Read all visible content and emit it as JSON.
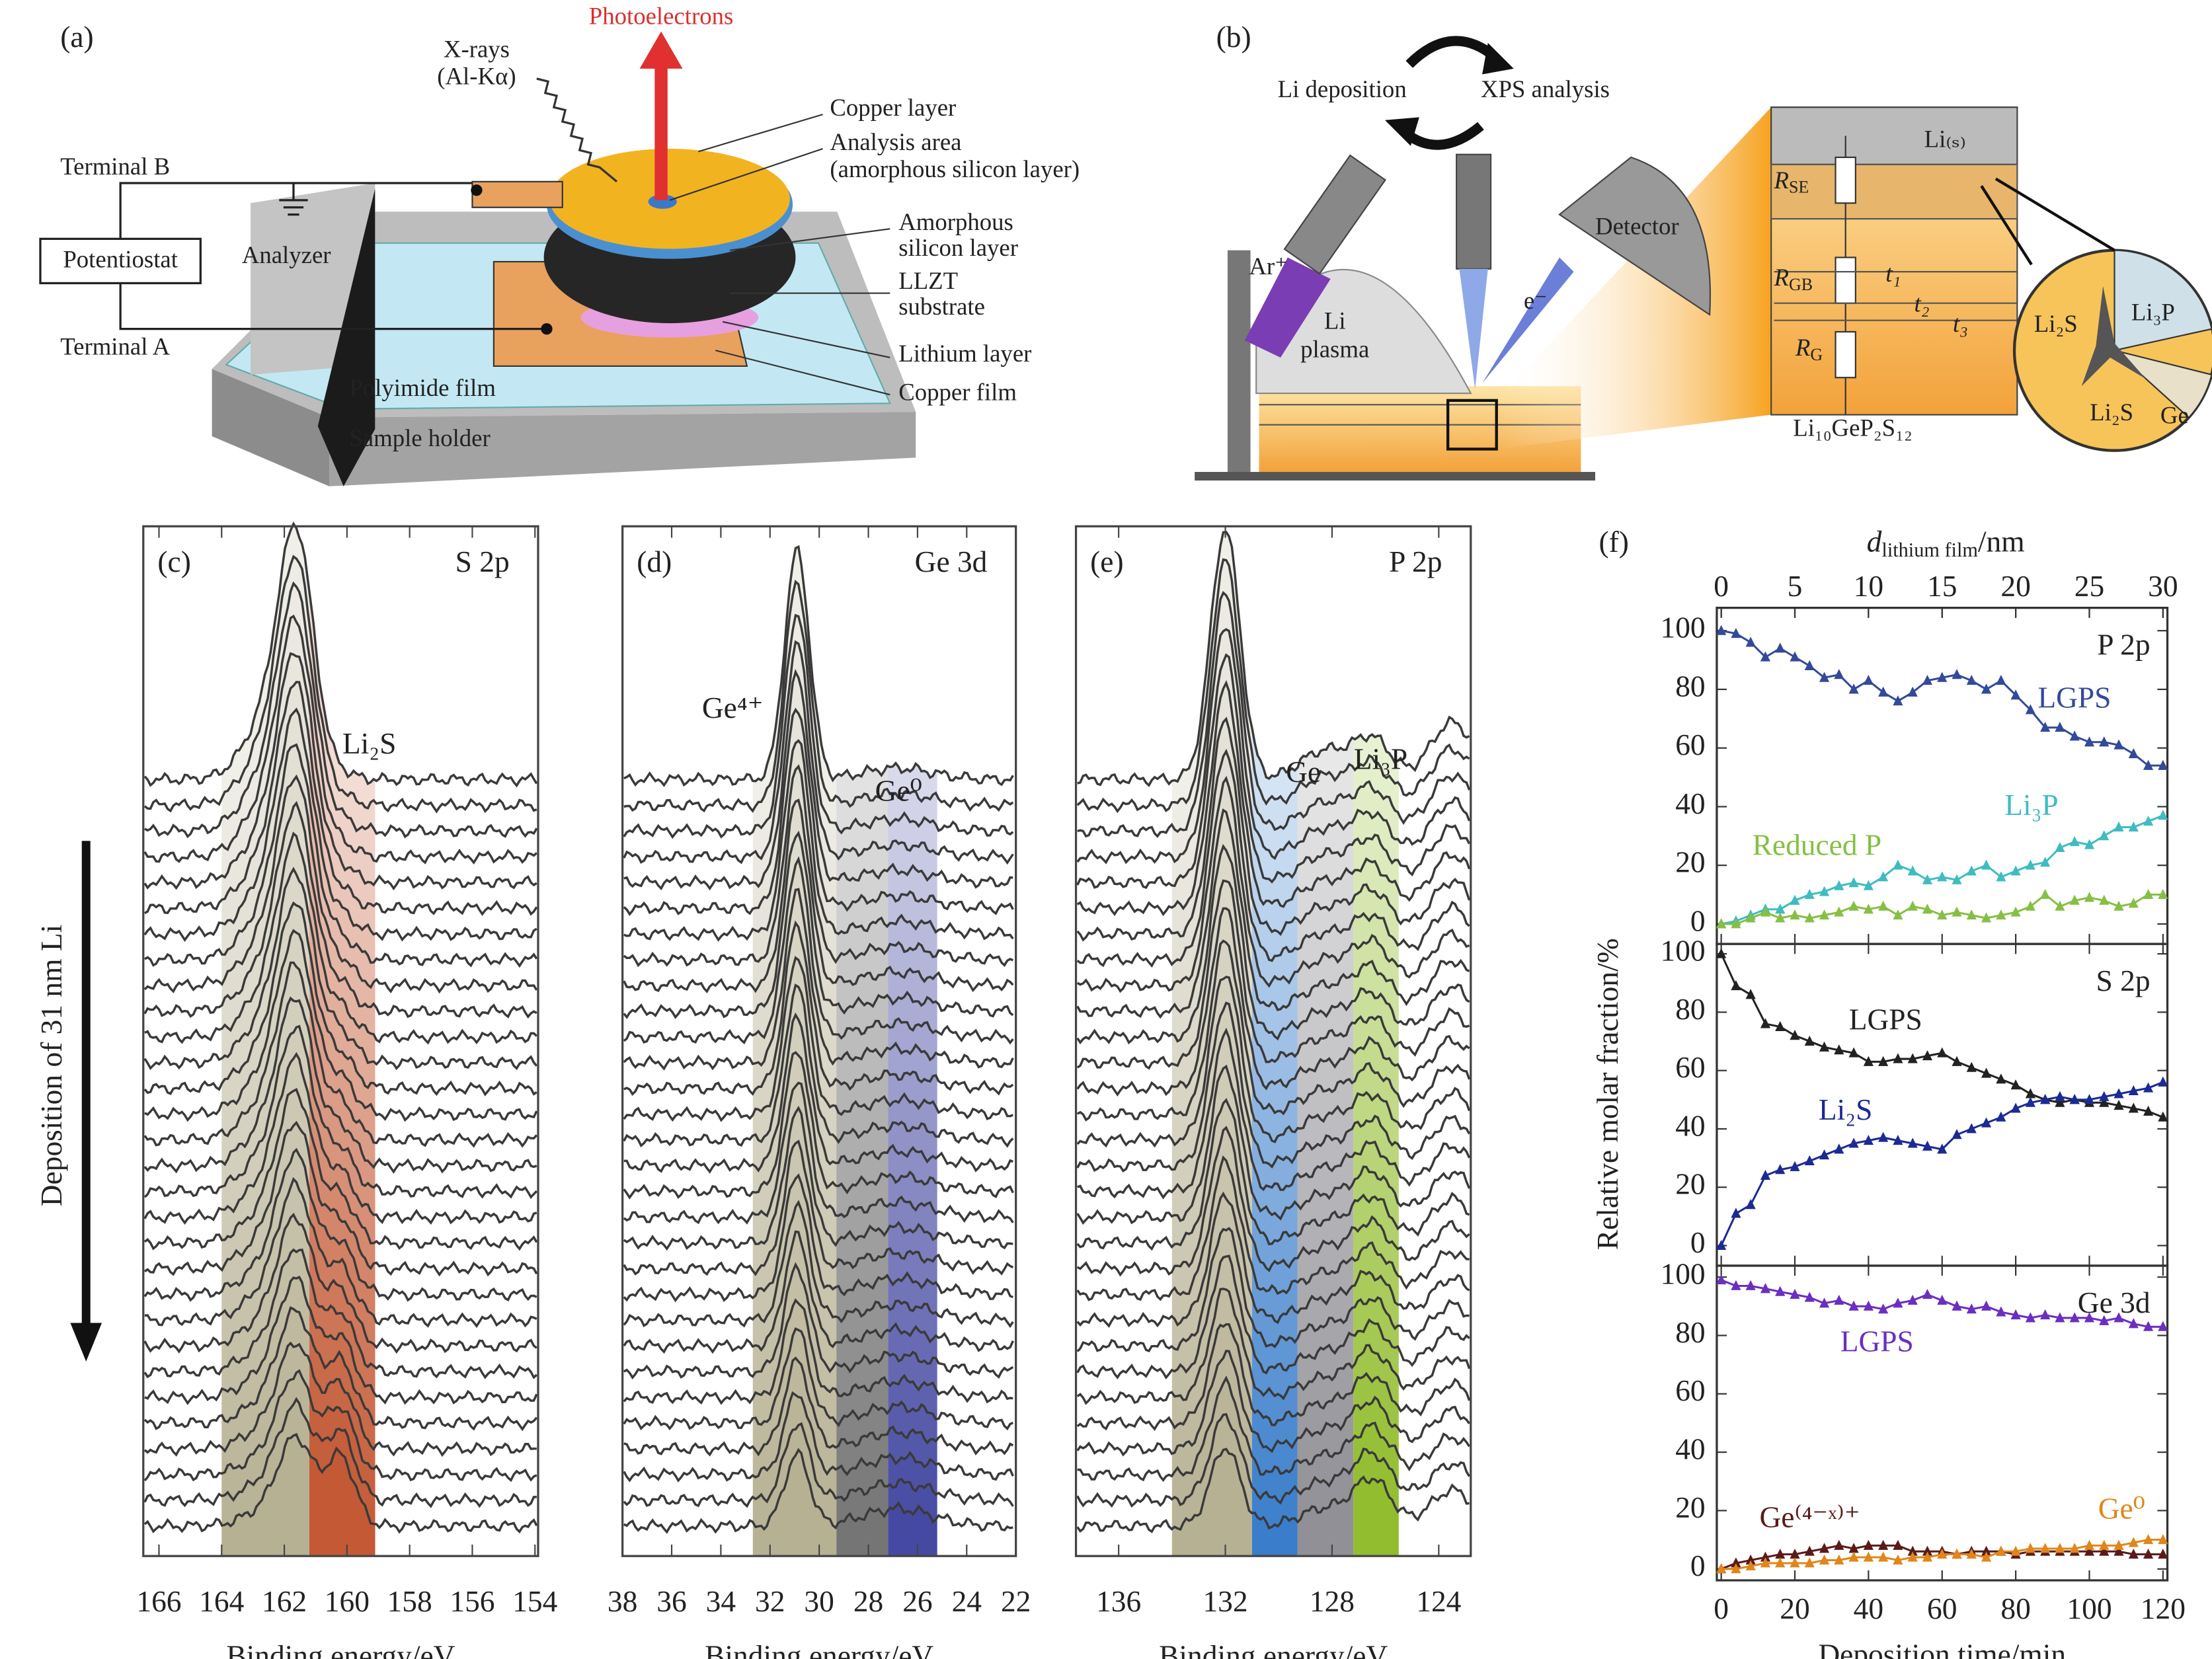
{
  "diagram_a": {
    "label": "(a)",
    "photoelectrons": "Photoelectrons",
    "xrays": "X-rays",
    "xrays_source": "(Al-Kα)",
    "copper_layer": "Copper layer",
    "analysis_area": "Analysis area",
    "analysis_area_note": "(amorphous silicon layer)",
    "terminal_b": "Terminal B",
    "amorphous": "Amorphous",
    "silicon_layer": "silicon layer",
    "potentiostat": "Potentiostat",
    "analyzer": "Analyzer",
    "llzt": "LLZT",
    "substrate": "substrate",
    "terminal_a": "Terminal A",
    "lithium_layer": "Lithium layer",
    "polyimide": "Polyimide film",
    "copper_film": "Copper film",
    "sample_holder": "Sample holder"
  },
  "diagram_b": {
    "label": "(b)",
    "li_deposition": "Li deposition",
    "xps_analysis": "XPS analysis",
    "ar": "Ar⁺",
    "detector": "Detector",
    "li": "Li",
    "plasma": "plasma",
    "electron": "e⁻",
    "li_s": "Li₍ₛ₎",
    "r_se": {
      "main": "R",
      "sub": "SE"
    },
    "r_gb": {
      "main": "R",
      "sub": "GB"
    },
    "r_g": {
      "main": "R",
      "sub": "G"
    },
    "t1": "t₁",
    "t2": "t₂",
    "t3": "t₃",
    "grain_li2s_a": "Li₂S",
    "grain_li3p": "Li₃P",
    "grain_ge": "Ge",
    "grain_li2s_b": "Li₂S",
    "formula": "Li₁₀GeP₂S₁₂"
  },
  "side_label": "Deposition of 31 nm Li",
  "chart_data": [
    {
      "type": "spectra",
      "label": "(c)",
      "core_level": "S 2p",
      "xlabel": "Binding energy/eV",
      "xlim": [
        166.5,
        153.9
      ],
      "xticks": [
        166,
        164,
        162,
        160,
        158,
        156,
        154
      ],
      "annotations": [
        "Li₂S"
      ],
      "bands": [
        {
          "from": 164,
          "to": 161.2,
          "color": "#b3ad8e"
        },
        {
          "from": 161.2,
          "to": 159.1,
          "color": "#c0502a"
        }
      ]
    },
    {
      "type": "spectra",
      "label": "(d)",
      "core_level": "Ge 3d",
      "xlabel": "Binding energy/eV",
      "xlim": [
        38,
        22
      ],
      "xticks": [
        38,
        36,
        34,
        32,
        30,
        28,
        26,
        24,
        22
      ],
      "annotations": [
        "Ge⁴⁺",
        "Ge⁰"
      ],
      "bands": [
        {
          "from": 32.7,
          "to": 29.3,
          "color": "#b3ad8e"
        },
        {
          "from": 29.3,
          "to": 27.2,
          "color": "#6e6e6e"
        },
        {
          "from": 27.2,
          "to": 25.2,
          "color": "#3b3f9c"
        }
      ]
    },
    {
      "type": "spectra",
      "label": "(e)",
      "core_level": "P 2p",
      "xlabel": "Binding energy/eV",
      "xlim": [
        137.6,
        122.8
      ],
      "xticks": [
        136,
        132,
        128,
        124
      ],
      "annotations": [
        "Ge",
        "Li₃P"
      ],
      "bands": [
        {
          "from": 134,
          "to": 131,
          "color": "#b3ad8e"
        },
        {
          "from": 131,
          "to": 129.3,
          "color": "#2f76c8"
        },
        {
          "from": 129.3,
          "to": 127.2,
          "color": "#8a8a90"
        },
        {
          "from": 127.2,
          "to": 125.5,
          "color": "#8cb923"
        }
      ]
    },
    {
      "type": "line",
      "label": "(f)",
      "core_level": "P 2p",
      "x2label": {
        "symbol": "d",
        "subscript": "lithium film",
        "unit": "/nm"
      },
      "x2lim": [
        -0.3,
        30.3
      ],
      "x2ticks": [
        0,
        5,
        10,
        15,
        20,
        25,
        30
      ],
      "xlim": [
        -1.2,
        121.2
      ],
      "ylim": [
        -6.8,
        107.8
      ],
      "yticks": [
        0,
        20,
        40,
        60,
        80,
        100
      ],
      "x": [
        0,
        4,
        8,
        12,
        16,
        20,
        24,
        28,
        32,
        36,
        40,
        44,
        48,
        52,
        56,
        60,
        64,
        68,
        72,
        76,
        80,
        84,
        88,
        92,
        96,
        100,
        104,
        108,
        112,
        116,
        120
      ],
      "series": [
        {
          "name": "LGPS",
          "color": "#34499a",
          "values": [
            100,
            99,
            96,
            91,
            94,
            91,
            88,
            84,
            85,
            80,
            83,
            79,
            76,
            79,
            83,
            84,
            85,
            83,
            80,
            83,
            78,
            73,
            67,
            67,
            64,
            62,
            62,
            61,
            58,
            54,
            54
          ]
        },
        {
          "name": "Li₃P",
          "color": "#3fbcc0",
          "values": [
            0,
            1,
            3,
            5,
            5,
            8,
            10,
            11,
            13,
            14,
            13,
            16,
            20,
            18,
            15,
            16,
            15,
            18,
            20,
            16,
            18,
            20,
            21,
            26,
            28,
            27,
            30,
            33,
            33,
            35,
            37
          ]
        },
        {
          "name": "Reduced P",
          "color": "#86bf45",
          "values": [
            0,
            0,
            2,
            4,
            2,
            3,
            2,
            3,
            4,
            6,
            5,
            6,
            3,
            6,
            5,
            3,
            4,
            3,
            2,
            3,
            4,
            6,
            10,
            6,
            8,
            9,
            8,
            6,
            7,
            10,
            10
          ]
        }
      ]
    },
    {
      "type": "line",
      "core_level": "S 2p",
      "ylabel": "Relative molar fraction/%",
      "xlim": [
        -1.2,
        121.2
      ],
      "ylim": [
        -6.9,
        103.4
      ],
      "yticks": [
        0,
        20,
        40,
        60,
        80,
        100
      ],
      "x": [
        0,
        4,
        8,
        12,
        16,
        20,
        24,
        28,
        32,
        36,
        40,
        44,
        48,
        52,
        56,
        60,
        64,
        68,
        72,
        76,
        80,
        84,
        88,
        92,
        96,
        100,
        104,
        108,
        112,
        116,
        120
      ],
      "series": [
        {
          "name": "LGPS",
          "color": "#222222",
          "values": [
            100,
            89,
            86,
            76,
            75,
            72,
            70,
            68,
            67,
            66,
            63,
            63,
            64,
            64,
            65,
            66,
            63,
            61,
            59,
            57,
            55,
            52,
            50,
            49,
            50,
            49,
            49,
            48,
            47,
            46,
            44
          ]
        },
        {
          "name": "Li₂S",
          "color": "#1c2a94",
          "values": [
            0,
            11,
            14,
            24,
            26,
            27,
            29,
            31,
            33,
            35,
            36,
            37,
            36,
            35,
            34,
            33,
            38,
            40,
            42,
            44,
            47,
            49,
            50,
            51,
            50,
            50,
            51,
            52,
            53,
            54,
            56
          ]
        }
      ]
    },
    {
      "type": "line",
      "core_level": "Ge 3d",
      "xlabel": "Deposition time/min",
      "xlim": [
        -1.2,
        121.2
      ],
      "xticks": [
        0,
        20,
        40,
        60,
        80,
        100,
        120
      ],
      "ylim": [
        -3.9,
        103.9
      ],
      "yticks": [
        0,
        20,
        40,
        60,
        80,
        100
      ],
      "x": [
        0,
        4,
        8,
        12,
        16,
        20,
        24,
        28,
        32,
        36,
        40,
        44,
        48,
        52,
        56,
        60,
        64,
        68,
        72,
        76,
        80,
        84,
        88,
        92,
        96,
        100,
        104,
        108,
        112,
        116,
        120
      ],
      "series": [
        {
          "name": "LGPS",
          "color": "#6a2fc0",
          "values": [
            99,
            97,
            97,
            96,
            95,
            94,
            93,
            91,
            92,
            90,
            90,
            89,
            91,
            92,
            94,
            92,
            90,
            89,
            90,
            88,
            87,
            86,
            87,
            86,
            86,
            86,
            85,
            86,
            84,
            83,
            83
          ]
        },
        {
          "name": "Ge⁽⁴⁻ˣ⁾⁺",
          "color": "#5a1a1a",
          "values": [
            0,
            2,
            3,
            4,
            5,
            5,
            6,
            7,
            8,
            7,
            8,
            8,
            8,
            6,
            6,
            6,
            5,
            6,
            6,
            6,
            5,
            6,
            6,
            6,
            6,
            6,
            6,
            6,
            5,
            5,
            5
          ]
        },
        {
          "name": "Ge⁰",
          "color": "#e0861a",
          "values": [
            0,
            0,
            1,
            2,
            2,
            2,
            2,
            3,
            3,
            4,
            4,
            4,
            3,
            4,
            4,
            5,
            5,
            5,
            4,
            6,
            6,
            7,
            7,
            7,
            7,
            8,
            8,
            8,
            9,
            10,
            10
          ]
        }
      ]
    }
  ]
}
